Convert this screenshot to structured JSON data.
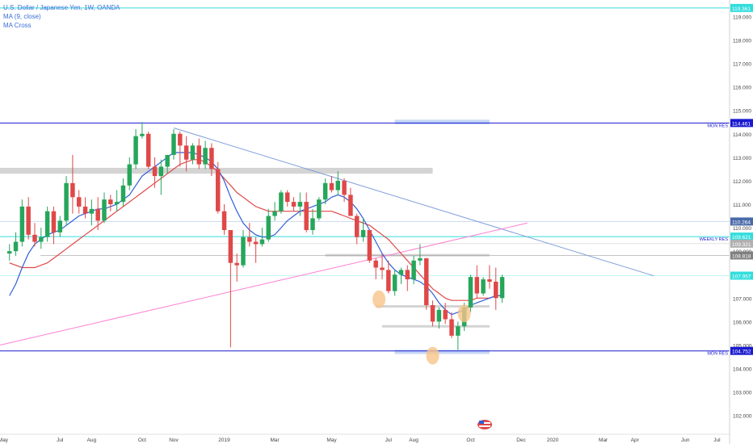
{
  "legend": {
    "title": "U.S. Dollar / Japanese Yen, 1W, OANDA",
    "ma": "MA (9, close)",
    "ma_cross": "MA Cross"
  },
  "colors": {
    "up": "#26a65b",
    "down": "#e04848",
    "ma_fast": "#2f5fd8",
    "ma_slow": "#e04848",
    "trendline": "#7f9fd9",
    "pink_line": "#ff7fd2",
    "cyan_line": "#33dddd",
    "res_line": "#1a1ad0",
    "zone_gray": "#c9c9c9",
    "zone_blue": "#b8cdf2",
    "circle": "#f7c489"
  },
  "chart_data": {
    "type": "candlestick",
    "title": "U.S. Dollar / Japanese Yen, 1W, OANDA",
    "ylim": [
      101.2,
      119.7
    ],
    "xlim_bars": [
      -1.5,
      114
    ],
    "y_ticks": [
      "102.000",
      "103.000",
      "104.000",
      "105.000",
      "106.000",
      "107.000",
      "108.000",
      "109.000",
      "110.000",
      "111.000",
      "112.000",
      "113.000",
      "114.000",
      "115.000",
      "116.000",
      "117.000",
      "118.000",
      "119.000"
    ],
    "x_ticks": [
      {
        "label": "May",
        "bar": -1
      },
      {
        "label": "Jul",
        "bar": 8
      },
      {
        "label": "Aug",
        "bar": 13
      },
      {
        "label": "Oct",
        "bar": 21
      },
      {
        "label": "Nov",
        "bar": 26
      },
      {
        "label": "2019",
        "bar": 34
      },
      {
        "label": "Mar",
        "bar": 42
      },
      {
        "label": "May",
        "bar": 51
      },
      {
        "label": "Jul",
        "bar": 60
      },
      {
        "label": "Aug",
        "bar": 64
      },
      {
        "label": "Oct",
        "bar": 73
      },
      {
        "label": "Dec",
        "bar": 81
      },
      {
        "label": "2020",
        "bar": 86
      },
      {
        "label": "Mar",
        "bar": 94
      },
      {
        "label": "Apr",
        "bar": 99
      },
      {
        "label": "Jun",
        "bar": 107
      },
      {
        "label": "Jul",
        "bar": 112
      }
    ],
    "price_badges": [
      {
        "label": "119.361",
        "value": 119.361,
        "color": "#33dddd",
        "note": ""
      },
      {
        "label": "114.461",
        "value": 114.461,
        "color": "#1a1ad0",
        "note": "MON RES"
      },
      {
        "label": "110.264",
        "value": 110.264,
        "color": "#4a6aa8",
        "note": ""
      },
      {
        "label": "109.621",
        "value": 109.621,
        "color": "#33dddd",
        "note": "WEEKLY RES"
      },
      {
        "label": "109.321",
        "value": 109.321,
        "color": "#b0b0b0",
        "note": ""
      },
      {
        "label": "108.818",
        "value": 108.818,
        "color": "#808080",
        "note": ""
      },
      {
        "label": "107.957",
        "value": 107.957,
        "color": "#33dddd",
        "note": ""
      },
      {
        "label": "104.752",
        "value": 104.752,
        "color": "#1a1ad0",
        "note": "MON RES"
      }
    ],
    "candles": [
      {
        "o": 108.9,
        "h": 109.3,
        "l": 108.6,
        "c": 109.0
      },
      {
        "o": 109.0,
        "h": 109.8,
        "l": 108.8,
        "c": 109.4
      },
      {
        "o": 109.4,
        "h": 111.2,
        "l": 109.2,
        "c": 110.9
      },
      {
        "o": 110.9,
        "h": 111.3,
        "l": 109.5,
        "c": 109.7
      },
      {
        "o": 109.7,
        "h": 110.2,
        "l": 109.2,
        "c": 109.4
      },
      {
        "o": 109.4,
        "h": 110.0,
        "l": 109.1,
        "c": 109.6
      },
      {
        "o": 109.6,
        "h": 110.9,
        "l": 109.4,
        "c": 110.7
      },
      {
        "o": 110.7,
        "h": 110.9,
        "l": 109.3,
        "c": 109.8
      },
      {
        "o": 109.8,
        "h": 110.5,
        "l": 109.6,
        "c": 110.3
      },
      {
        "o": 110.3,
        "h": 112.2,
        "l": 110.1,
        "c": 111.9
      },
      {
        "o": 111.9,
        "h": 113.1,
        "l": 110.6,
        "c": 111.3
      },
      {
        "o": 111.3,
        "h": 111.6,
        "l": 110.6,
        "c": 110.9
      },
      {
        "o": 110.9,
        "h": 111.3,
        "l": 110.4,
        "c": 110.6
      },
      {
        "o": 110.6,
        "h": 111.2,
        "l": 110.1,
        "c": 110.8
      },
      {
        "o": 110.8,
        "h": 111.3,
        "l": 109.9,
        "c": 110.3
      },
      {
        "o": 110.3,
        "h": 111.5,
        "l": 110.2,
        "c": 111.2
      },
      {
        "o": 111.2,
        "h": 111.4,
        "l": 110.7,
        "c": 111.0
      },
      {
        "o": 111.0,
        "h": 111.6,
        "l": 110.7,
        "c": 111.1
      },
      {
        "o": 111.1,
        "h": 112.1,
        "l": 110.9,
        "c": 111.8
      },
      {
        "o": 111.8,
        "h": 113.0,
        "l": 111.6,
        "c": 112.7
      },
      {
        "o": 112.7,
        "h": 114.2,
        "l": 112.5,
        "c": 113.9
      },
      {
        "o": 113.9,
        "h": 114.5,
        "l": 113.8,
        "c": 114.0
      },
      {
        "o": 114.0,
        "h": 114.1,
        "l": 112.5,
        "c": 112.6
      },
      {
        "o": 112.6,
        "h": 113.0,
        "l": 111.7,
        "c": 112.2
      },
      {
        "o": 112.2,
        "h": 112.9,
        "l": 111.4,
        "c": 112.6
      },
      {
        "o": 112.6,
        "h": 113.1,
        "l": 112.3,
        "c": 113.1
      },
      {
        "o": 113.1,
        "h": 114.2,
        "l": 112.9,
        "c": 114.0
      },
      {
        "o": 114.0,
        "h": 114.1,
        "l": 112.6,
        "c": 113.5
      },
      {
        "o": 113.5,
        "h": 113.9,
        "l": 112.4,
        "c": 112.9
      },
      {
        "o": 112.9,
        "h": 113.6,
        "l": 112.7,
        "c": 113.5
      },
      {
        "o": 113.5,
        "h": 113.8,
        "l": 112.5,
        "c": 112.7
      },
      {
        "o": 112.7,
        "h": 113.7,
        "l": 112.5,
        "c": 113.4
      },
      {
        "o": 113.4,
        "h": 113.6,
        "l": 112.2,
        "c": 112.5
      },
      {
        "o": 112.5,
        "h": 112.8,
        "l": 110.6,
        "c": 110.7
      },
      {
        "o": 110.7,
        "h": 111.0,
        "l": 109.7,
        "c": 109.9
      },
      {
        "o": 109.9,
        "h": 109.9,
        "l": 104.9,
        "c": 108.5
      },
      {
        "o": 108.5,
        "h": 108.9,
        "l": 107.7,
        "c": 108.4
      },
      {
        "o": 108.4,
        "h": 109.9,
        "l": 108.3,
        "c": 109.6
      },
      {
        "o": 109.6,
        "h": 110.2,
        "l": 109.2,
        "c": 109.4
      },
      {
        "o": 109.4,
        "h": 109.6,
        "l": 108.5,
        "c": 109.3
      },
      {
        "o": 109.3,
        "h": 110.0,
        "l": 109.2,
        "c": 109.5
      },
      {
        "o": 109.5,
        "h": 110.8,
        "l": 109.4,
        "c": 110.5
      },
      {
        "o": 110.5,
        "h": 111.1,
        "l": 110.3,
        "c": 110.7
      },
      {
        "o": 110.7,
        "h": 111.6,
        "l": 110.6,
        "c": 111.5
      },
      {
        "o": 111.5,
        "h": 111.6,
        "l": 110.9,
        "c": 111.1
      },
      {
        "o": 111.1,
        "h": 111.3,
        "l": 110.7,
        "c": 110.9
      },
      {
        "o": 110.9,
        "h": 111.5,
        "l": 110.5,
        "c": 111.1
      },
      {
        "o": 111.1,
        "h": 111.5,
        "l": 109.8,
        "c": 109.9
      },
      {
        "o": 109.9,
        "h": 110.8,
        "l": 109.7,
        "c": 110.4
      },
      {
        "o": 110.4,
        "h": 111.3,
        "l": 110.3,
        "c": 111.2
      },
      {
        "o": 111.2,
        "h": 112.1,
        "l": 111.0,
        "c": 111.9
      },
      {
        "o": 111.9,
        "h": 112.2,
        "l": 111.5,
        "c": 111.6
      },
      {
        "o": 111.6,
        "h": 112.4,
        "l": 111.4,
        "c": 112.0
      },
      {
        "o": 112.0,
        "h": 112.1,
        "l": 111.1,
        "c": 111.4
      },
      {
        "o": 111.4,
        "h": 111.7,
        "l": 110.5,
        "c": 110.5
      },
      {
        "o": 110.5,
        "h": 110.6,
        "l": 109.3,
        "c": 109.6
      },
      {
        "o": 109.6,
        "h": 110.4,
        "l": 109.4,
        "c": 109.9
      },
      {
        "o": 109.9,
        "h": 109.9,
        "l": 108.5,
        "c": 108.6
      },
      {
        "o": 108.6,
        "h": 108.7,
        "l": 107.8,
        "c": 108.3
      },
      {
        "o": 108.3,
        "h": 108.9,
        "l": 107.8,
        "c": 108.2
      },
      {
        "o": 108.2,
        "h": 108.6,
        "l": 107.2,
        "c": 107.3
      },
      {
        "o": 107.3,
        "h": 108.2,
        "l": 107.1,
        "c": 108.0
      },
      {
        "o": 108.0,
        "h": 108.3,
        "l": 107.6,
        "c": 108.2
      },
      {
        "o": 108.2,
        "h": 108.4,
        "l": 107.3,
        "c": 107.8
      },
      {
        "o": 107.8,
        "h": 108.8,
        "l": 107.6,
        "c": 108.6
      },
      {
        "o": 108.6,
        "h": 109.3,
        "l": 108.4,
        "c": 108.7
      },
      {
        "o": 108.7,
        "h": 108.7,
        "l": 106.5,
        "c": 106.7
      },
      {
        "o": 106.7,
        "h": 106.9,
        "l": 105.8,
        "c": 106.0
      },
      {
        "o": 106.0,
        "h": 106.6,
        "l": 105.7,
        "c": 106.5
      },
      {
        "o": 106.5,
        "h": 106.8,
        "l": 105.9,
        "c": 106.1
      },
      {
        "o": 106.1,
        "h": 106.4,
        "l": 105.3,
        "c": 105.4
      },
      {
        "o": 105.4,
        "h": 106.0,
        "l": 104.8,
        "c": 105.8
      },
      {
        "o": 105.8,
        "h": 106.8,
        "l": 105.6,
        "c": 106.6
      },
      {
        "o": 106.6,
        "h": 108.0,
        "l": 106.4,
        "c": 107.9
      },
      {
        "o": 107.9,
        "h": 108.4,
        "l": 107.0,
        "c": 107.2
      },
      {
        "o": 107.2,
        "h": 107.9,
        "l": 107.1,
        "c": 107.8
      },
      {
        "o": 107.8,
        "h": 108.4,
        "l": 107.4,
        "c": 107.7
      },
      {
        "o": 107.7,
        "h": 108.3,
        "l": 106.5,
        "c": 107.0
      },
      {
        "o": 107.0,
        "h": 108.0,
        "l": 106.8,
        "c": 107.9
      }
    ],
    "ma_fast_values": [
      107.1,
      107.6,
      108.3,
      108.9,
      109.3,
      109.5,
      109.7,
      109.8,
      109.9,
      110.1,
      110.3,
      110.5,
      110.6,
      110.7,
      110.8,
      110.8,
      110.9,
      111.0,
      111.2,
      111.4,
      111.8,
      112.2,
      112.4,
      112.6,
      112.8,
      113.0,
      113.2,
      113.2,
      113.2,
      113.2,
      113.1,
      113.0,
      112.8,
      112.5,
      112.0,
      111.3,
      110.7,
      110.2,
      109.9,
      109.7,
      109.6,
      109.6,
      109.7,
      110.0,
      110.3,
      110.5,
      110.7,
      110.8,
      110.9,
      111.0,
      111.1,
      111.3,
      111.4,
      111.3,
      111.1,
      110.8,
      110.4,
      109.9,
      109.4,
      108.9,
      108.5,
      108.2,
      108.0,
      107.9,
      107.8,
      107.7,
      107.5,
      107.2,
      106.8,
      106.5,
      106.3,
      106.4,
      106.5,
      106.7,
      106.8,
      106.9,
      107.0,
      107.1,
      107.1
    ],
    "ma_slow_values": [
      108.5,
      108.4,
      108.3,
      108.3,
      108.3,
      108.4,
      108.5,
      108.7,
      108.9,
      109.1,
      109.3,
      109.5,
      109.7,
      109.9,
      110.1,
      110.3,
      110.5,
      110.7,
      110.9,
      111.1,
      111.3,
      111.5,
      111.7,
      111.9,
      112.1,
      112.3,
      112.5,
      112.7,
      112.8,
      112.9,
      112.9,
      112.8,
      112.6,
      112.4,
      112.1,
      111.8,
      111.5,
      111.3,
      111.1,
      110.9,
      110.8,
      110.7,
      110.7,
      110.7,
      110.7,
      110.7,
      110.7,
      110.7,
      110.7,
      110.7,
      110.7,
      110.7,
      110.6,
      110.5,
      110.4,
      110.3,
      110.2,
      110.1,
      109.9,
      109.7,
      109.5,
      109.2,
      108.9,
      108.6,
      108.3,
      108.0,
      107.7,
      107.4,
      107.2,
      107.0,
      106.9,
      106.9,
      106.9,
      106.9,
      107.0,
      107.0,
      107.0,
      107.1,
      107.1
    ]
  }
}
